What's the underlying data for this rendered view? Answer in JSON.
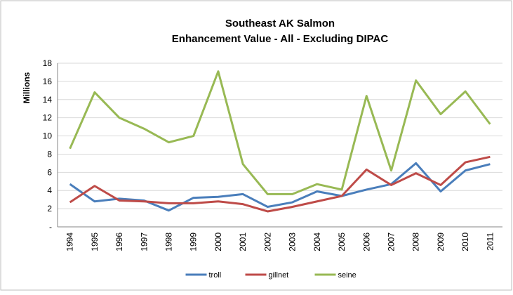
{
  "chart_data": {
    "type": "line",
    "title": "Southeast AK Salmon",
    "subtitle": "Enhancement Value - All - Excluding DIPAC",
    "y_label": "Millions",
    "categories": [
      "1994",
      "1995",
      "1996",
      "1997",
      "1998",
      "1999",
      "2000",
      "2001",
      "2002",
      "2003",
      "2004",
      "2005",
      "2006",
      "2007",
      "2008",
      "2009",
      "2010",
      "2011"
    ],
    "series": [
      {
        "name": "troll",
        "color": "#4a7ebb",
        "values": [
          4.7,
          2.8,
          3.1,
          2.9,
          1.8,
          3.2,
          3.3,
          3.6,
          2.2,
          2.7,
          3.9,
          3.4,
          4.1,
          4.7,
          7.0,
          3.9,
          6.2,
          6.9
        ]
      },
      {
        "name": "gillnet",
        "color": "#be4b48",
        "values": [
          2.7,
          4.5,
          2.9,
          2.8,
          2.6,
          2.6,
          2.8,
          2.5,
          1.7,
          2.2,
          2.8,
          3.4,
          6.3,
          4.6,
          5.9,
          4.6,
          7.1,
          7.7
        ]
      },
      {
        "name": "seine",
        "color": "#98b954",
        "values": [
          8.6,
          14.8,
          12.0,
          10.8,
          9.3,
          10.0,
          17.1,
          6.9,
          3.6,
          3.6,
          4.7,
          4.1,
          14.4,
          6.2,
          16.1,
          12.4,
          14.9,
          11.3
        ]
      }
    ],
    "ylim": [
      0,
      18
    ],
    "yticks": [
      {
        "value": 0,
        "label": "-"
      },
      2,
      4,
      6,
      8,
      10,
      12,
      14,
      16,
      18
    ],
    "grid": true,
    "legend": "bottom"
  }
}
